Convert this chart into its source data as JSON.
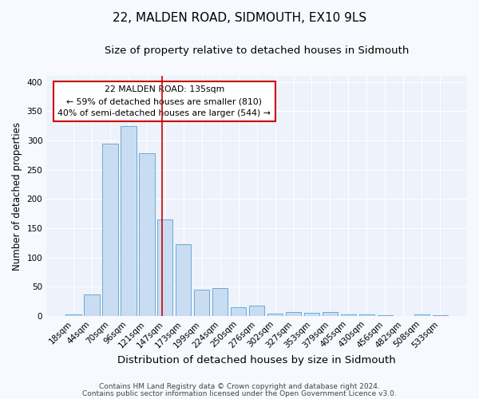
{
  "title": "22, MALDEN ROAD, SIDMOUTH, EX10 9LS",
  "subtitle": "Size of property relative to detached houses in Sidmouth",
  "xlabel": "Distribution of detached houses by size in Sidmouth",
  "ylabel": "Number of detached properties",
  "categories": [
    "18sqm",
    "44sqm",
    "70sqm",
    "96sqm",
    "121sqm",
    "147sqm",
    "173sqm",
    "199sqm",
    "224sqm",
    "250sqm",
    "276sqm",
    "302sqm",
    "327sqm",
    "353sqm",
    "379sqm",
    "405sqm",
    "430sqm",
    "456sqm",
    "482sqm",
    "508sqm",
    "533sqm"
  ],
  "values": [
    3,
    37,
    295,
    325,
    278,
    165,
    122,
    45,
    47,
    15,
    17,
    4,
    6,
    5,
    6,
    3,
    2,
    1,
    0,
    3,
    1
  ],
  "bar_color": "#c9ddf2",
  "bar_edge_color": "#6aaad4",
  "vline_x": 4.82,
  "vline_color": "#cc0000",
  "annotation_title": "22 MALDEN ROAD: 135sqm",
  "annotation_line1": "← 59% of detached houses are smaller (810)",
  "annotation_line2": "40% of semi-detached houses are larger (544) →",
  "annotation_box_color": "#ffffff",
  "annotation_box_edge": "#cc0000",
  "ylim": [
    0,
    410
  ],
  "yticks": [
    0,
    50,
    100,
    150,
    200,
    250,
    300,
    350,
    400
  ],
  "footnote1": "Contains HM Land Registry data © Crown copyright and database right 2024.",
  "footnote2": "Contains public sector information licensed under the Open Government Licence v3.0.",
  "background_color": "#edf2fb",
  "fig_background": "#f7f9fe",
  "grid_color": "#ffffff",
  "title_fontsize": 11,
  "subtitle_fontsize": 9.5,
  "xlabel_fontsize": 9.5,
  "ylabel_fontsize": 8.5,
  "tick_fontsize": 7.5,
  "annotation_fontsize": 7.8,
  "footnote_fontsize": 6.5
}
